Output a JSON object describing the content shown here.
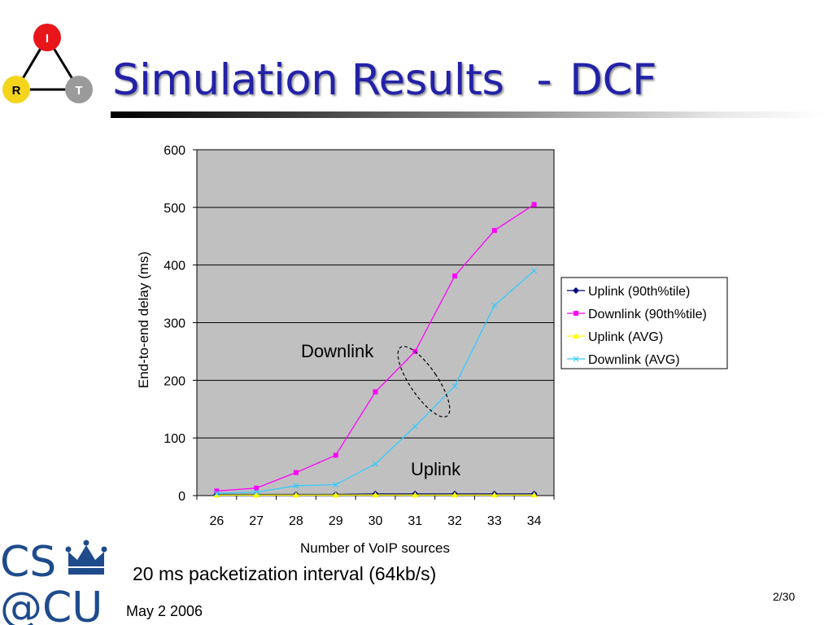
{
  "slide": {
    "title_main": "Simulation Results",
    "title_dash": "-",
    "title_sub": "DCF",
    "caption": "20 ms packetization interval (64kb/s)",
    "footer_date": "May 2 2006",
    "slide_number": "2/30"
  },
  "logo": {
    "node_top": "I",
    "node_left": "R",
    "node_right": "T"
  },
  "cs_logo": {
    "line1": "CS",
    "line2": "@CU"
  },
  "colors": {
    "title": "#2222a8",
    "plot_bg": "#c0c0c0",
    "uplink_90": "#000080",
    "downlink_90": "#ff00ff",
    "uplink_avg": "#ffff00",
    "downlink_avg": "#33ccff"
  },
  "chart_data": {
    "type": "line",
    "title": "",
    "xlabel": "Number of VoIP sources",
    "ylabel": "End-to-end delay (ms)",
    "x": [
      26,
      27,
      28,
      29,
      30,
      31,
      32,
      33,
      34
    ],
    "ylim": [
      0,
      600
    ],
    "yticks": [
      0,
      100,
      200,
      300,
      400,
      500,
      600
    ],
    "grid": "horizontal",
    "legend_position": "right",
    "series": [
      {
        "name": "Uplink (90th%tile)",
        "color": "#000080",
        "marker": "diamond",
        "values": [
          2,
          2,
          2,
          2,
          3,
          3,
          3,
          3,
          3
        ]
      },
      {
        "name": "Downlink (90th%tile)",
        "color": "#ff00ff",
        "marker": "square",
        "values": [
          8,
          13,
          40,
          70,
          180,
          250,
          381,
          460,
          505
        ]
      },
      {
        "name": "Uplink (AVG)",
        "color": "#ffff00",
        "marker": "triangle",
        "values": [
          1,
          1,
          1,
          1,
          1,
          1,
          1,
          1,
          1
        ]
      },
      {
        "name": "Downlink (AVG)",
        "color": "#33ccff",
        "marker": "x",
        "values": [
          4,
          6,
          17,
          19,
          55,
          120,
          190,
          330,
          390
        ]
      }
    ],
    "annotations": [
      "Downlink",
      "Uplink"
    ]
  }
}
